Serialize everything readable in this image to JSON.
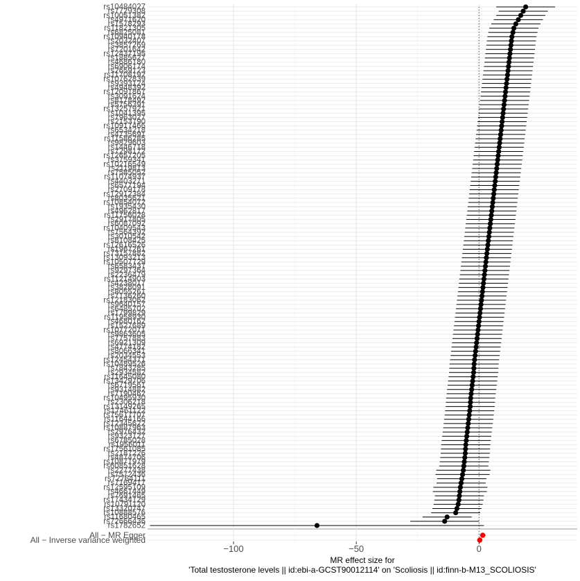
{
  "chart_data": {
    "type": "forest",
    "xlabel_line1": "MR effect size for",
    "xlabel_line2": "'Total testosterone levels || id:ebi-a-GCST90012114' on 'Scoliosis || id:finn-b-M13_SCOLIOSIS'",
    "xlim": [
      -135,
      40
    ],
    "xticks": [
      -100,
      -50,
      0
    ],
    "vline": 0,
    "grid": true,
    "snp_count": 123,
    "snp_labels": [
      "rs1782652",
      "rs72666436",
      "rs11680465",
      "rs10888576",
      "rs13320747",
      "rs10791120",
      "rs17434129",
      "rs7691465",
      "rs4661449",
      "rs12595109",
      "rs7169417",
      "rs72764111",
      "rs7572436",
      "rs2277438",
      "rs60851628",
      "rs10871979",
      "rs4874706",
      "rs2187226",
      "rs17561085",
      "rs1956011",
      "rs6785028",
      "rs9323127",
      "rs2976432",
      "rs10887963",
      "rs12345622",
      "rs11644166",
      "rs75617707",
      "rs17461122",
      "rs13149265",
      "rs2306218",
      "rs10495930",
      "rs7190462",
      "rs9314882",
      "rs6719561",
      "rs13429706",
      "rs11645080",
      "rs2934582",
      "rs7843285",
      "rs10489526",
      "rs12454371",
      "rs2034553",
      "rs8066341",
      "rs4774182",
      "rs6921309",
      "rs7757883",
      "rs9863605",
      "rs10772071",
      "rs1527689",
      "rs4680162",
      "rs11958930",
      "rs1799829",
      "rs6485702",
      "rs9640157",
      "rs12183062",
      "rs7136260",
      "rs8055261",
      "rs3828091",
      "rs4238017",
      "rs11214903",
      "rs2236479",
      "rs9297364",
      "rs6583437",
      "rs10507729",
      "rs13093213",
      "rs73157882",
      "rs1967261",
      "rs12616526",
      "rs8108425",
      "rs3010542",
      "rs7564392",
      "rs10409543",
      "rs6087092",
      "rs2917805",
      "rs11756028",
      "rs4962817",
      "rs1935430",
      "rs10854072",
      "rs8035621",
      "rs12912384",
      "rs2709178",
      "rs6577194",
      "rs4403271",
      "rs11074937",
      "rs7585052",
      "rs2119813",
      "rs10216549",
      "rs3759341",
      "rs12657205",
      "rs7298172",
      "rs1446718",
      "rs9829603",
      "rs11586285",
      "rs4735691",
      "rs6534218",
      "rs10917466",
      "rs2153790",
      "rs7963027",
      "rs1041395",
      "rs13257921",
      "rs5756391",
      "rs8178492",
      "rs3091624",
      "rs12091867",
      "rs4948392",
      "rs9393124",
      "rs10762839",
      "rs11708192",
      "rs2659123",
      "rs6906174",
      "rs4686180",
      "rs1885627",
      "rs12437195",
      "rs7201642",
      "rs3857269",
      "rs2032407",
      "rs10940178",
      "rs6825081",
      "rs11821305",
      "rs1578293",
      "rs4971620",
      "rs10051382",
      "rs7729308",
      "rs10484027"
    ],
    "summary_labels": [
      "All − MR Egger",
      "All − Inverse variance weighted"
    ],
    "snp_estimates": [
      -66,
      -14,
      -13,
      -9.5,
      -9,
      -8.5,
      -8.2,
      -8,
      -7.8,
      -7.6,
      -7.3,
      -7,
      -6.7,
      -6.4,
      -6.2,
      -6,
      -5.8,
      -5.6,
      -5.5,
      -5.4,
      -5.2,
      -5,
      -4.8,
      -4.6,
      -4.4,
      -4.2,
      -4,
      -3.8,
      -3.6,
      -3.5,
      -3.4,
      -3.2,
      -3,
      -2.8,
      -2.6,
      -2.4,
      -2.2,
      -2.1,
      -2,
      -1.8,
      -1.6,
      -1.4,
      -1.2,
      -1,
      -0.8,
      -0.6,
      -0.4,
      -0.2,
      0,
      0.2,
      0.4,
      0.6,
      0.8,
      1,
      1.2,
      1.4,
      1.6,
      1.8,
      2,
      2.2,
      2.4,
      2.6,
      2.8,
      3,
      3.2,
      3.4,
      3.6,
      3.8,
      4,
      4.2,
      4.4,
      4.6,
      4.8,
      5,
      5.2,
      5.4,
      5.6,
      5.8,
      6,
      6.2,
      6.4,
      6.6,
      6.8,
      7,
      7.2,
      7.4,
      7.6,
      7.8,
      8,
      8.2,
      8.4,
      8.6,
      8.8,
      9,
      9.2,
      9.4,
      9.6,
      9.8,
      10,
      10.2,
      10.4,
      10.6,
      10.8,
      11,
      11.2,
      11.4,
      11.6,
      11.8,
      12,
      12.2,
      12.4,
      12.6,
      12.8,
      13,
      13.2,
      13.4,
      13.8,
      14.2,
      15,
      16,
      17,
      18,
      19
    ],
    "snp_halfwidth": [
      68,
      14,
      10,
      10,
      10,
      10,
      10,
      10,
      11,
      11,
      10,
      10,
      11,
      11,
      10,
      10,
      10,
      10,
      10,
      10,
      10,
      10,
      10,
      10,
      10,
      10,
      10,
      10,
      10,
      10,
      10,
      10,
      10,
      10,
      10,
      10,
      10,
      10,
      10,
      10,
      10,
      10,
      10,
      10,
      10,
      10,
      10,
      10,
      10,
      10,
      10,
      10,
      10,
      10,
      10,
      10,
      10,
      10,
      10,
      10,
      10,
      10,
      10,
      10,
      10,
      10,
      10,
      10,
      10,
      10,
      10,
      10,
      10,
      10,
      10,
      10,
      10,
      10,
      10,
      10,
      10,
      10,
      10,
      10,
      10,
      10,
      10,
      10,
      10,
      10,
      10,
      10,
      10,
      10,
      10,
      10,
      10,
      10,
      10,
      10,
      10,
      10,
      10,
      10,
      10,
      10,
      10,
      10,
      10,
      10,
      10,
      10,
      10,
      10,
      10,
      10,
      10,
      10,
      10,
      10,
      10,
      10,
      12
    ],
    "summary_estimates": [
      1.5,
      0.3
    ],
    "summary_halfwidth": [
      1.2,
      0.6
    ]
  }
}
